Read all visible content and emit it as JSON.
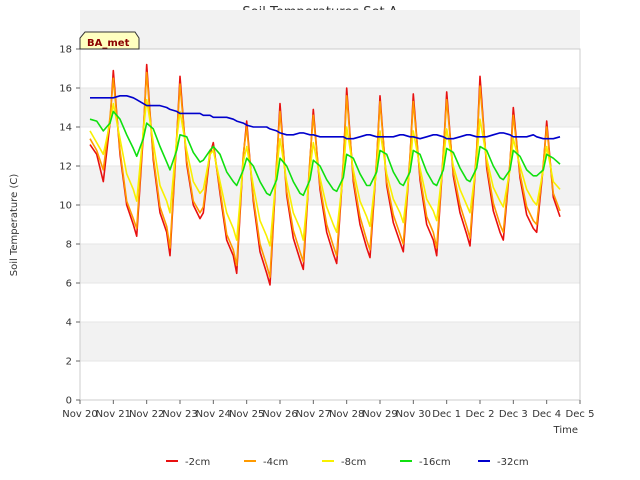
{
  "chart_data": {
    "type": "line",
    "title": "Soil Temperatures Set A",
    "xlabel": "Time",
    "ylabel": "Soil Temperature (C)",
    "badge": "BA_met",
    "x_ticks": [
      "Nov 20",
      "Nov 21",
      "Nov 22",
      "Nov 23",
      "Nov 24",
      "Nov 25",
      "Nov 26",
      "Nov 27",
      "Nov 28",
      "Nov 29",
      "Nov 30",
      "Dec 1",
      "Dec 2",
      "Dec 3",
      "Dec 4",
      "Dec 5"
    ],
    "xlim": [
      "Nov 20",
      "Dec 5"
    ],
    "ylim": [
      0,
      18
    ],
    "y_ticks": [
      0,
      2,
      4,
      6,
      8,
      10,
      12,
      14,
      16,
      18
    ],
    "grid": "horizontal bands",
    "legend_position": "bottom",
    "x_time_unit": "days",
    "x": [
      0.3,
      0.5,
      0.7,
      0.9,
      1.0,
      1.2,
      1.4,
      1.6,
      1.7,
      1.9,
      2.0,
      2.2,
      2.4,
      2.6,
      2.7,
      2.9,
      3.0,
      3.2,
      3.4,
      3.6,
      3.7,
      3.9,
      4.0,
      4.2,
      4.4,
      4.6,
      4.7,
      4.9,
      5.0,
      5.2,
      5.4,
      5.6,
      5.7,
      5.9,
      6.0,
      6.2,
      6.4,
      6.6,
      6.7,
      6.9,
      7.0,
      7.2,
      7.4,
      7.6,
      7.7,
      7.9,
      8.0,
      8.2,
      8.4,
      8.6,
      8.7,
      8.9,
      9.0,
      9.2,
      9.4,
      9.6,
      9.7,
      9.9,
      10.0,
      10.2,
      10.4,
      10.6,
      10.7,
      10.9,
      11.0,
      11.2,
      11.4,
      11.6,
      11.7,
      11.9,
      12.0,
      12.2,
      12.4,
      12.6,
      12.7,
      12.9,
      13.0,
      13.2,
      13.4,
      13.6,
      13.7,
      13.9,
      14.0,
      14.2,
      14.4
    ],
    "series": [
      {
        "name": "-2cm",
        "color": "#e81010",
        "values": [
          13.1,
          12.6,
          11.2,
          14.2,
          16.9,
          12.6,
          10.0,
          9.0,
          8.4,
          13.6,
          17.2,
          12.3,
          9.6,
          8.6,
          7.4,
          13.4,
          16.6,
          12.1,
          10.0,
          9.3,
          9.6,
          12.6,
          13.2,
          10.6,
          8.2,
          7.4,
          6.5,
          12.5,
          14.3,
          10.2,
          7.6,
          6.5,
          5.9,
          12.2,
          15.2,
          10.5,
          8.3,
          7.2,
          6.7,
          12.3,
          14.9,
          10.8,
          8.6,
          7.5,
          7.0,
          12.1,
          16.0,
          11.2,
          9.0,
          7.8,
          7.3,
          12.3,
          15.6,
          11.0,
          9.1,
          8.1,
          7.6,
          12.4,
          15.7,
          11.3,
          9.0,
          8.2,
          7.4,
          12.6,
          15.8,
          11.5,
          9.6,
          8.5,
          7.9,
          12.8,
          16.6,
          11.9,
          9.7,
          8.6,
          8.2,
          12.1,
          15.0,
          11.4,
          9.5,
          8.8,
          8.6,
          12.0,
          14.3,
          10.4,
          9.4
        ]
      },
      {
        "name": "-4cm",
        "color": "#ff9a00",
        "values": [
          13.4,
          12.8,
          11.8,
          14.5,
          16.5,
          12.8,
          10.2,
          9.3,
          8.8,
          13.8,
          16.8,
          12.5,
          9.9,
          8.9,
          7.8,
          13.5,
          16.2,
          12.3,
          10.2,
          9.6,
          9.9,
          12.8,
          13.0,
          10.8,
          8.5,
          7.7,
          6.9,
          12.6,
          14.0,
          10.4,
          8.0,
          6.9,
          6.3,
          12.3,
          14.8,
          10.7,
          8.7,
          7.6,
          7.1,
          12.4,
          14.6,
          11.0,
          9.0,
          7.9,
          7.4,
          12.2,
          15.6,
          11.4,
          9.4,
          8.2,
          7.7,
          12.4,
          15.3,
          11.2,
          9.5,
          8.5,
          8.0,
          12.5,
          15.3,
          11.5,
          9.4,
          8.6,
          7.8,
          12.7,
          15.4,
          11.7,
          10.0,
          8.9,
          8.3,
          12.9,
          16.1,
          12.1,
          10.1,
          9.0,
          8.6,
          12.2,
          14.6,
          11.6,
          9.9,
          9.2,
          9.0,
          12.1,
          14.0,
          10.6,
          9.7
        ]
      },
      {
        "name": "-8cm",
        "color": "#f8f000",
        "values": [
          13.8,
          13.2,
          12.6,
          14.2,
          15.2,
          13.4,
          11.6,
          10.8,
          10.2,
          13.8,
          15.4,
          13.2,
          11.0,
          10.2,
          9.6,
          13.4,
          14.8,
          12.8,
          11.2,
          10.6,
          10.8,
          12.6,
          12.8,
          11.2,
          9.6,
          8.8,
          8.2,
          12.2,
          13.0,
          11.0,
          9.2,
          8.4,
          7.9,
          11.8,
          13.4,
          11.2,
          9.6,
          8.8,
          8.2,
          11.8,
          13.2,
          11.4,
          9.9,
          9.0,
          8.6,
          11.6,
          14.0,
          11.8,
          10.2,
          9.4,
          8.9,
          11.9,
          13.8,
          11.6,
          10.3,
          9.6,
          9.1,
          12.0,
          13.8,
          11.9,
          10.3,
          9.7,
          9.2,
          12.2,
          13.9,
          12.0,
          10.8,
          10.0,
          9.6,
          12.3,
          14.4,
          12.4,
          10.9,
          10.2,
          9.9,
          11.8,
          13.4,
          12.0,
          10.8,
          10.2,
          10.0,
          11.8,
          13.0,
          11.2,
          10.8
        ]
      },
      {
        "name": "-16cm",
        "color": "#10e010",
        "values": [
          14.4,
          14.3,
          13.8,
          14.2,
          14.8,
          14.4,
          13.6,
          12.9,
          12.5,
          13.4,
          14.2,
          13.9,
          13.0,
          12.2,
          11.8,
          12.8,
          13.6,
          13.5,
          12.7,
          12.2,
          12.3,
          12.8,
          13.0,
          12.6,
          11.7,
          11.2,
          11.0,
          11.8,
          12.4,
          12.0,
          11.2,
          10.6,
          10.5,
          11.3,
          12.4,
          12.0,
          11.2,
          10.6,
          10.5,
          11.3,
          12.3,
          12.0,
          11.3,
          10.8,
          10.7,
          11.4,
          12.6,
          12.4,
          11.6,
          11.0,
          11.0,
          11.7,
          12.8,
          12.6,
          11.7,
          11.1,
          11.0,
          11.7,
          12.8,
          12.6,
          11.7,
          11.1,
          11.0,
          11.8,
          12.9,
          12.7,
          11.9,
          11.3,
          11.2,
          11.9,
          13.0,
          12.8,
          12.0,
          11.4,
          11.3,
          11.8,
          12.8,
          12.5,
          11.8,
          11.5,
          11.5,
          11.8,
          12.6,
          12.4,
          12.1
        ]
      },
      {
        "name": "-32cm",
        "color": "#0000cc",
        "values": [
          15.5,
          15.5,
          15.5,
          15.5,
          15.5,
          15.6,
          15.6,
          15.5,
          15.4,
          15.2,
          15.1,
          15.1,
          15.1,
          15.0,
          14.9,
          14.8,
          14.7,
          14.7,
          14.7,
          14.7,
          14.6,
          14.6,
          14.5,
          14.5,
          14.5,
          14.4,
          14.3,
          14.2,
          14.1,
          14.0,
          14.0,
          14.0,
          13.9,
          13.8,
          13.7,
          13.6,
          13.6,
          13.7,
          13.7,
          13.6,
          13.6,
          13.5,
          13.5,
          13.5,
          13.5,
          13.5,
          13.4,
          13.4,
          13.5,
          13.6,
          13.6,
          13.5,
          13.5,
          13.5,
          13.5,
          13.6,
          13.6,
          13.5,
          13.5,
          13.4,
          13.5,
          13.6,
          13.6,
          13.5,
          13.4,
          13.4,
          13.5,
          13.6,
          13.6,
          13.5,
          13.5,
          13.5,
          13.6,
          13.7,
          13.7,
          13.6,
          13.5,
          13.5,
          13.5,
          13.6,
          13.5,
          13.4,
          13.4,
          13.4,
          13.5
        ]
      }
    ]
  }
}
